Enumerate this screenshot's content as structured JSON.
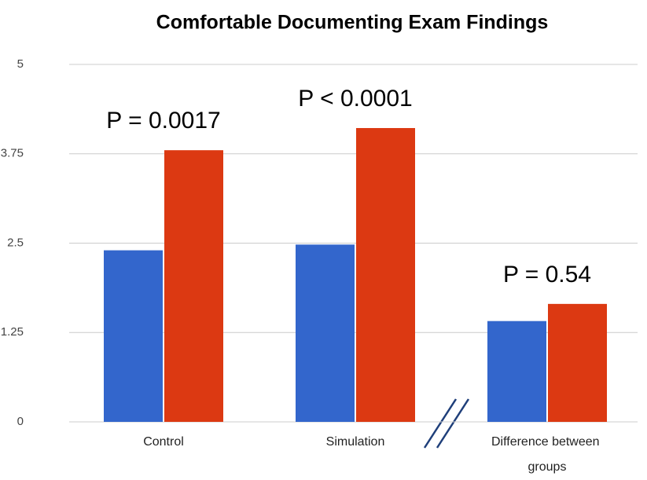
{
  "chart_data": {
    "type": "bar",
    "title": "Comfortable Documenting Exam Findings",
    "categories": [
      "Control",
      "Simulation",
      "Difference between groups"
    ],
    "series": [
      {
        "color": "#3366cc",
        "values": [
          2.4,
          2.48,
          1.41
        ]
      },
      {
        "color": "#dc3912",
        "values": [
          3.8,
          4.11,
          1.65
        ]
      }
    ],
    "annotations": [
      "P = 0.0017",
      "P < 0.0001",
      "P = 0.54"
    ],
    "ylim": [
      0,
      5
    ],
    "yticks": [
      0,
      1.25,
      2.5,
      3.75,
      5
    ],
    "grid": true
  }
}
